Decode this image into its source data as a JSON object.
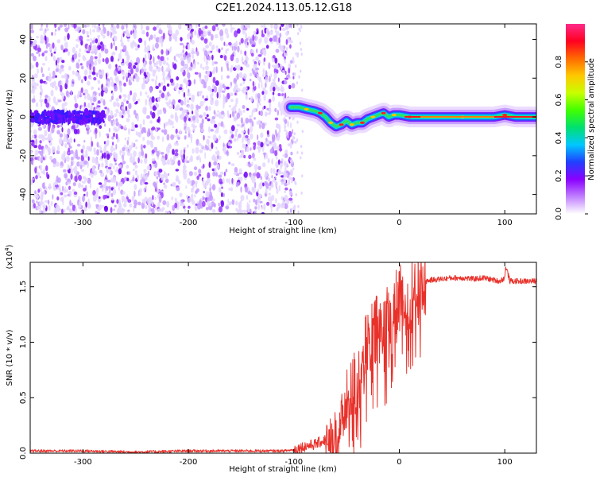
{
  "title": "C2E1.2024.113.05.12.G18",
  "chart_data": [
    {
      "type": "heatmap",
      "xlabel": "Height of straight line (km)",
      "ylabel": "Frequency (Hz)",
      "xlim": [
        -350,
        130
      ],
      "ylim": [
        -50,
        48
      ],
      "x_ticks": [
        -300,
        -200,
        -100,
        0,
        100
      ],
      "y_ticks": [
        -40,
        -20,
        0,
        20,
        40
      ],
      "colorbar": {
        "label": "Normalized spectral amplitude",
        "range": [
          0,
          1
        ],
        "ticks": [
          "0.0",
          "0.2",
          "0.4",
          "0.6",
          "0.8"
        ],
        "tick_values": [
          0.0,
          0.2,
          0.4,
          0.6,
          0.8
        ],
        "colors": [
          "#ffffff",
          "#c080ff",
          "#8a00ff",
          "#2040ff",
          "#00c8ff",
          "#00e070",
          "#40ff00",
          "#c8ff00",
          "#ffc800",
          "#ff6a00",
          "#ff0020",
          "#ff2a8a"
        ]
      },
      "noise_region": {
        "x_range": [
          -350,
          -100
        ],
        "f_range": [
          -50,
          48
        ]
      },
      "ridge_line": {
        "x": [
          -103,
          -95,
          -88,
          -80,
          -75,
          -70,
          -65,
          -60,
          -55,
          -50,
          -45,
          -40,
          -35,
          -30,
          -25,
          -20,
          -15,
          -10,
          -5,
          0,
          10,
          30,
          60,
          90,
          100,
          110,
          130
        ],
        "f": [
          5,
          5,
          4,
          3,
          2,
          0,
          -3,
          -5,
          -4,
          -2,
          -4,
          -3,
          -3,
          -1,
          0,
          1,
          2,
          0,
          1,
          1,
          0,
          0,
          0,
          0,
          1,
          0,
          0
        ]
      }
    },
    {
      "type": "line",
      "xlabel": "Height of straight line (km)",
      "ylabel": "SNR (10 * v/v)",
      "scale_label": "(x10",
      "scale_exp": "4",
      "scale_close": ")",
      "xlim": [
        -350,
        130
      ],
      "ylim": [
        0,
        1.72
      ],
      "x_ticks": [
        -300,
        -200,
        -100,
        0,
        100
      ],
      "y_ticks": [
        "0.0",
        "0.5",
        "1.0",
        "1.5"
      ],
      "y_tick_values": [
        0.0,
        0.5,
        1.0,
        1.5
      ],
      "series": [
        {
          "color": "#e8312a",
          "x": [
            -350,
            -300,
            -250,
            -200,
            -150,
            -110,
            -100,
            -90,
            -80,
            -70,
            -60,
            -55,
            -50,
            -45,
            -40,
            -35,
            -30,
            -25,
            -20,
            -15,
            -10,
            -5,
            0,
            5,
            10,
            15,
            20,
            25,
            30,
            40,
            50,
            60,
            70,
            80,
            90,
            95,
            100,
            101,
            105,
            110,
            120,
            130
          ],
          "y": [
            0.02,
            0.02,
            0.01,
            0.02,
            0.02,
            0.02,
            0.03,
            0.06,
            0.08,
            0.12,
            0.18,
            0.3,
            0.45,
            0.55,
            0.7,
            0.82,
            0.95,
            1.05,
            1.1,
            1.18,
            1.22,
            1.3,
            1.35,
            1.4,
            1.45,
            1.5,
            1.53,
            1.55,
            1.56,
            1.57,
            1.58,
            1.58,
            1.57,
            1.58,
            1.56,
            1.55,
            1.58,
            1.68,
            1.55,
            1.55,
            1.55,
            1.55
          ]
        }
      ]
    }
  ]
}
